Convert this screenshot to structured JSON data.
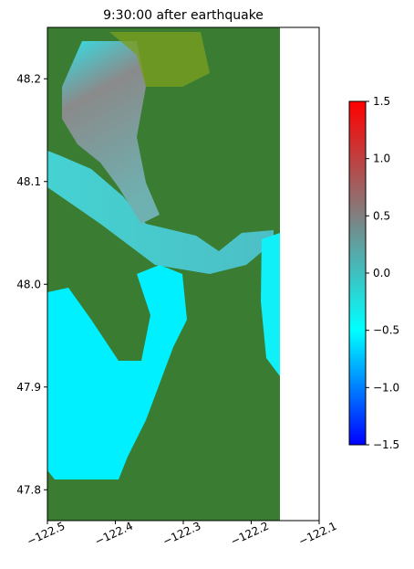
{
  "chart_data": {
    "type": "heatmap",
    "title": "9:30:00 after earthquake",
    "xlim": [
      -122.5,
      -122.1
    ],
    "xticks": [
      {
        "value": -122.5,
        "label": "−122.5"
      },
      {
        "value": -122.4,
        "label": "−122.4"
      },
      {
        "value": -122.3,
        "label": "−122.3"
      },
      {
        "value": -122.2,
        "label": "−122.2"
      },
      {
        "value": -122.1,
        "label": "−122.1"
      }
    ],
    "ylim": [
      47.77,
      48.25
    ],
    "yticks": [
      47.8,
      47.9,
      {
        "value": 48,
        "label": "48.0"
      },
      48.1,
      48.2
    ],
    "clim": [
      -1.5,
      1.5
    ],
    "colormap": [
      "#0000ff",
      "#00ffff",
      "#808080",
      "#ff0000"
    ],
    "cticks": [
      1.5,
      {
        "value": 1,
        "label": "1.0"
      },
      0.5,
      {
        "value": 0,
        "label": "0.0"
      },
      {
        "value": -0.5,
        "label": "−0.5"
      },
      {
        "value": -1,
        "label": "−1.0"
      },
      {
        "value": -1.5,
        "label": "−1.5"
      }
    ]
  }
}
